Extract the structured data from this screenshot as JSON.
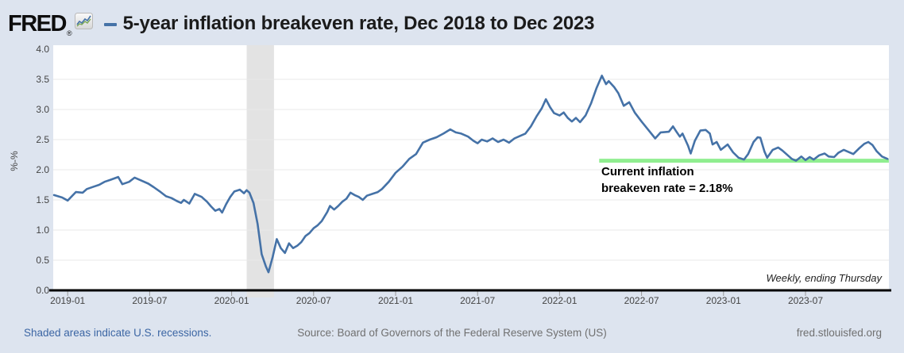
{
  "header": {
    "logo_text": "FRED",
    "logo_registered": "®",
    "title": "5-year inflation breakeven rate, Dec 2018 to Dec 2023"
  },
  "annotation": {
    "line1": "Current inflation",
    "line2": "breakeven rate = 2.18%"
  },
  "footer": {
    "recession_note": "Shaded areas indicate U.S. recessions.",
    "source": "Source: Board of Governors of the Federal Reserve System (US)",
    "site": "fred.stlouisfed.org"
  },
  "colors": {
    "page_bg": "#dde4ef",
    "plot_bg": "#ffffff",
    "line": "#4572a7",
    "reference_line": "#90ee90",
    "recession_band": "#e3e3e3",
    "gridline": "#e8e8e8",
    "axis": "#000000",
    "tick": "#999999",
    "logo_icon_blue": "#4572a7",
    "logo_icon_green": "#7aa854",
    "link_blue": "#3c66a4"
  },
  "chart_data": {
    "type": "line",
    "title": "5-year inflation breakeven rate, Dec 2018 to Dec 2023",
    "ylabel": "%-%",
    "ylim": [
      0,
      4.0
    ],
    "yticks": [
      "0.0",
      "0.5",
      "1.0",
      "1.5",
      "2.0",
      "2.5",
      "3.0",
      "3.5",
      "4.0"
    ],
    "x_epoch": "2018-12",
    "x_unit": "months_since_epoch",
    "xlim": [
      0,
      61.1
    ],
    "xticks": [
      {
        "m": 1,
        "label": "2019-01"
      },
      {
        "m": 7,
        "label": "2019-07"
      },
      {
        "m": 13,
        "label": "2020-01"
      },
      {
        "m": 19,
        "label": "2020-07"
      },
      {
        "m": 25,
        "label": "2021-01"
      },
      {
        "m": 31,
        "label": "2021-07"
      },
      {
        "m": 37,
        "label": "2022-01"
      },
      {
        "m": 43,
        "label": "2022-07"
      },
      {
        "m": 49,
        "label": "2023-01"
      },
      {
        "m": 55,
        "label": "2023-07"
      }
    ],
    "grid": "horizontal",
    "legend_position": "title-inline-dash",
    "note": "Weekly, ending Thursday",
    "recession_band": {
      "from_m": 14.1,
      "to_m": 16.1,
      "label": "U.S. recession"
    },
    "reference_line": {
      "value": 2.18,
      "draw_value": 2.15,
      "from_m": 39.9,
      "to_m": 61.1,
      "label": "Current inflation breakeven rate = 2.18%"
    },
    "series": [
      {
        "name": "5-year inflation breakeven rate",
        "frequency": "Weekly, ending Thursday",
        "last_value": 2.18,
        "points": [
          [
            0,
            1.58
          ],
          [
            0.6,
            1.54
          ],
          [
            1.0,
            1.49
          ],
          [
            1.6,
            1.63
          ],
          [
            2.1,
            1.62
          ],
          [
            2.4,
            1.68
          ],
          [
            2.9,
            1.72
          ],
          [
            3.3,
            1.75
          ],
          [
            3.7,
            1.8
          ],
          [
            4.1,
            1.83
          ],
          [
            4.7,
            1.88
          ],
          [
            5.0,
            1.76
          ],
          [
            5.5,
            1.8
          ],
          [
            5.9,
            1.87
          ],
          [
            6.4,
            1.82
          ],
          [
            6.9,
            1.77
          ],
          [
            7.3,
            1.71
          ],
          [
            7.8,
            1.63
          ],
          [
            8.2,
            1.56
          ],
          [
            8.6,
            1.53
          ],
          [
            9.0,
            1.48
          ],
          [
            9.3,
            1.45
          ],
          [
            9.5,
            1.5
          ],
          [
            9.9,
            1.44
          ],
          [
            10.3,
            1.6
          ],
          [
            10.8,
            1.55
          ],
          [
            11.2,
            1.47
          ],
          [
            11.5,
            1.39
          ],
          [
            11.8,
            1.32
          ],
          [
            12.1,
            1.35
          ],
          [
            12.3,
            1.29
          ],
          [
            12.6,
            1.43
          ],
          [
            12.9,
            1.55
          ],
          [
            13.2,
            1.64
          ],
          [
            13.6,
            1.67
          ],
          [
            13.9,
            1.61
          ],
          [
            14.1,
            1.66
          ],
          [
            14.3,
            1.62
          ],
          [
            14.6,
            1.45
          ],
          [
            14.9,
            1.1
          ],
          [
            15.2,
            0.6
          ],
          [
            15.5,
            0.4
          ],
          [
            15.7,
            0.3
          ],
          [
            16.0,
            0.55
          ],
          [
            16.3,
            0.85
          ],
          [
            16.6,
            0.7
          ],
          [
            16.9,
            0.62
          ],
          [
            17.2,
            0.78
          ],
          [
            17.5,
            0.7
          ],
          [
            17.8,
            0.74
          ],
          [
            18.1,
            0.8
          ],
          [
            18.4,
            0.9
          ],
          [
            18.7,
            0.95
          ],
          [
            19.0,
            1.03
          ],
          [
            19.3,
            1.08
          ],
          [
            19.6,
            1.15
          ],
          [
            20.0,
            1.3
          ],
          [
            20.2,
            1.4
          ],
          [
            20.5,
            1.34
          ],
          [
            20.8,
            1.4
          ],
          [
            21.1,
            1.47
          ],
          [
            21.4,
            1.52
          ],
          [
            21.7,
            1.62
          ],
          [
            22.0,
            1.58
          ],
          [
            22.3,
            1.55
          ],
          [
            22.6,
            1.5
          ],
          [
            22.9,
            1.57
          ],
          [
            23.3,
            1.6
          ],
          [
            23.7,
            1.63
          ],
          [
            24.0,
            1.68
          ],
          [
            24.5,
            1.8
          ],
          [
            25.0,
            1.95
          ],
          [
            25.5,
            2.05
          ],
          [
            26.0,
            2.18
          ],
          [
            26.5,
            2.26
          ],
          [
            27.0,
            2.45
          ],
          [
            27.5,
            2.5
          ],
          [
            28.0,
            2.54
          ],
          [
            28.5,
            2.6
          ],
          [
            29.0,
            2.67
          ],
          [
            29.4,
            2.62
          ],
          [
            29.8,
            2.6
          ],
          [
            30.3,
            2.55
          ],
          [
            30.7,
            2.48
          ],
          [
            31.0,
            2.44
          ],
          [
            31.3,
            2.5
          ],
          [
            31.7,
            2.47
          ],
          [
            32.1,
            2.52
          ],
          [
            32.5,
            2.46
          ],
          [
            32.9,
            2.5
          ],
          [
            33.3,
            2.45
          ],
          [
            33.7,
            2.52
          ],
          [
            34.1,
            2.56
          ],
          [
            34.5,
            2.6
          ],
          [
            34.9,
            2.72
          ],
          [
            35.3,
            2.88
          ],
          [
            35.7,
            3.02
          ],
          [
            36.0,
            3.17
          ],
          [
            36.3,
            3.04
          ],
          [
            36.6,
            2.94
          ],
          [
            37.0,
            2.9
          ],
          [
            37.3,
            2.95
          ],
          [
            37.6,
            2.86
          ],
          [
            37.9,
            2.8
          ],
          [
            38.2,
            2.86
          ],
          [
            38.5,
            2.79
          ],
          [
            38.9,
            2.9
          ],
          [
            39.3,
            3.1
          ],
          [
            39.7,
            3.35
          ],
          [
            40.1,
            3.56
          ],
          [
            40.4,
            3.42
          ],
          [
            40.6,
            3.47
          ],
          [
            41.0,
            3.37
          ],
          [
            41.3,
            3.27
          ],
          [
            41.7,
            3.06
          ],
          [
            42.1,
            3.12
          ],
          [
            42.5,
            2.95
          ],
          [
            43.0,
            2.8
          ],
          [
            43.5,
            2.66
          ],
          [
            44.0,
            2.52
          ],
          [
            44.4,
            2.62
          ],
          [
            45.0,
            2.63
          ],
          [
            45.3,
            2.72
          ],
          [
            45.5,
            2.65
          ],
          [
            45.8,
            2.55
          ],
          [
            46.0,
            2.6
          ],
          [
            46.4,
            2.4
          ],
          [
            46.6,
            2.27
          ],
          [
            46.9,
            2.48
          ],
          [
            47.3,
            2.65
          ],
          [
            47.7,
            2.66
          ],
          [
            48.0,
            2.6
          ],
          [
            48.2,
            2.42
          ],
          [
            48.5,
            2.46
          ],
          [
            48.8,
            2.33
          ],
          [
            49.3,
            2.42
          ],
          [
            49.7,
            2.29
          ],
          [
            50.1,
            2.2
          ],
          [
            50.5,
            2.17
          ],
          [
            50.8,
            2.26
          ],
          [
            51.2,
            2.46
          ],
          [
            51.5,
            2.54
          ],
          [
            51.7,
            2.53
          ],
          [
            52.0,
            2.3
          ],
          [
            52.2,
            2.2
          ],
          [
            52.6,
            2.33
          ],
          [
            53.0,
            2.37
          ],
          [
            53.3,
            2.32
          ],
          [
            53.6,
            2.26
          ],
          [
            54.0,
            2.18
          ],
          [
            54.3,
            2.15
          ],
          [
            54.7,
            2.22
          ],
          [
            55.0,
            2.16
          ],
          [
            55.3,
            2.21
          ],
          [
            55.6,
            2.17
          ],
          [
            56.0,
            2.24
          ],
          [
            56.4,
            2.27
          ],
          [
            56.7,
            2.22
          ],
          [
            57.1,
            2.21
          ],
          [
            57.4,
            2.28
          ],
          [
            57.8,
            2.33
          ],
          [
            58.1,
            2.3
          ],
          [
            58.5,
            2.26
          ],
          [
            58.9,
            2.35
          ],
          [
            59.3,
            2.43
          ],
          [
            59.6,
            2.46
          ],
          [
            59.9,
            2.41
          ],
          [
            60.2,
            2.31
          ],
          [
            60.6,
            2.22
          ],
          [
            61.0,
            2.18
          ]
        ]
      }
    ]
  }
}
